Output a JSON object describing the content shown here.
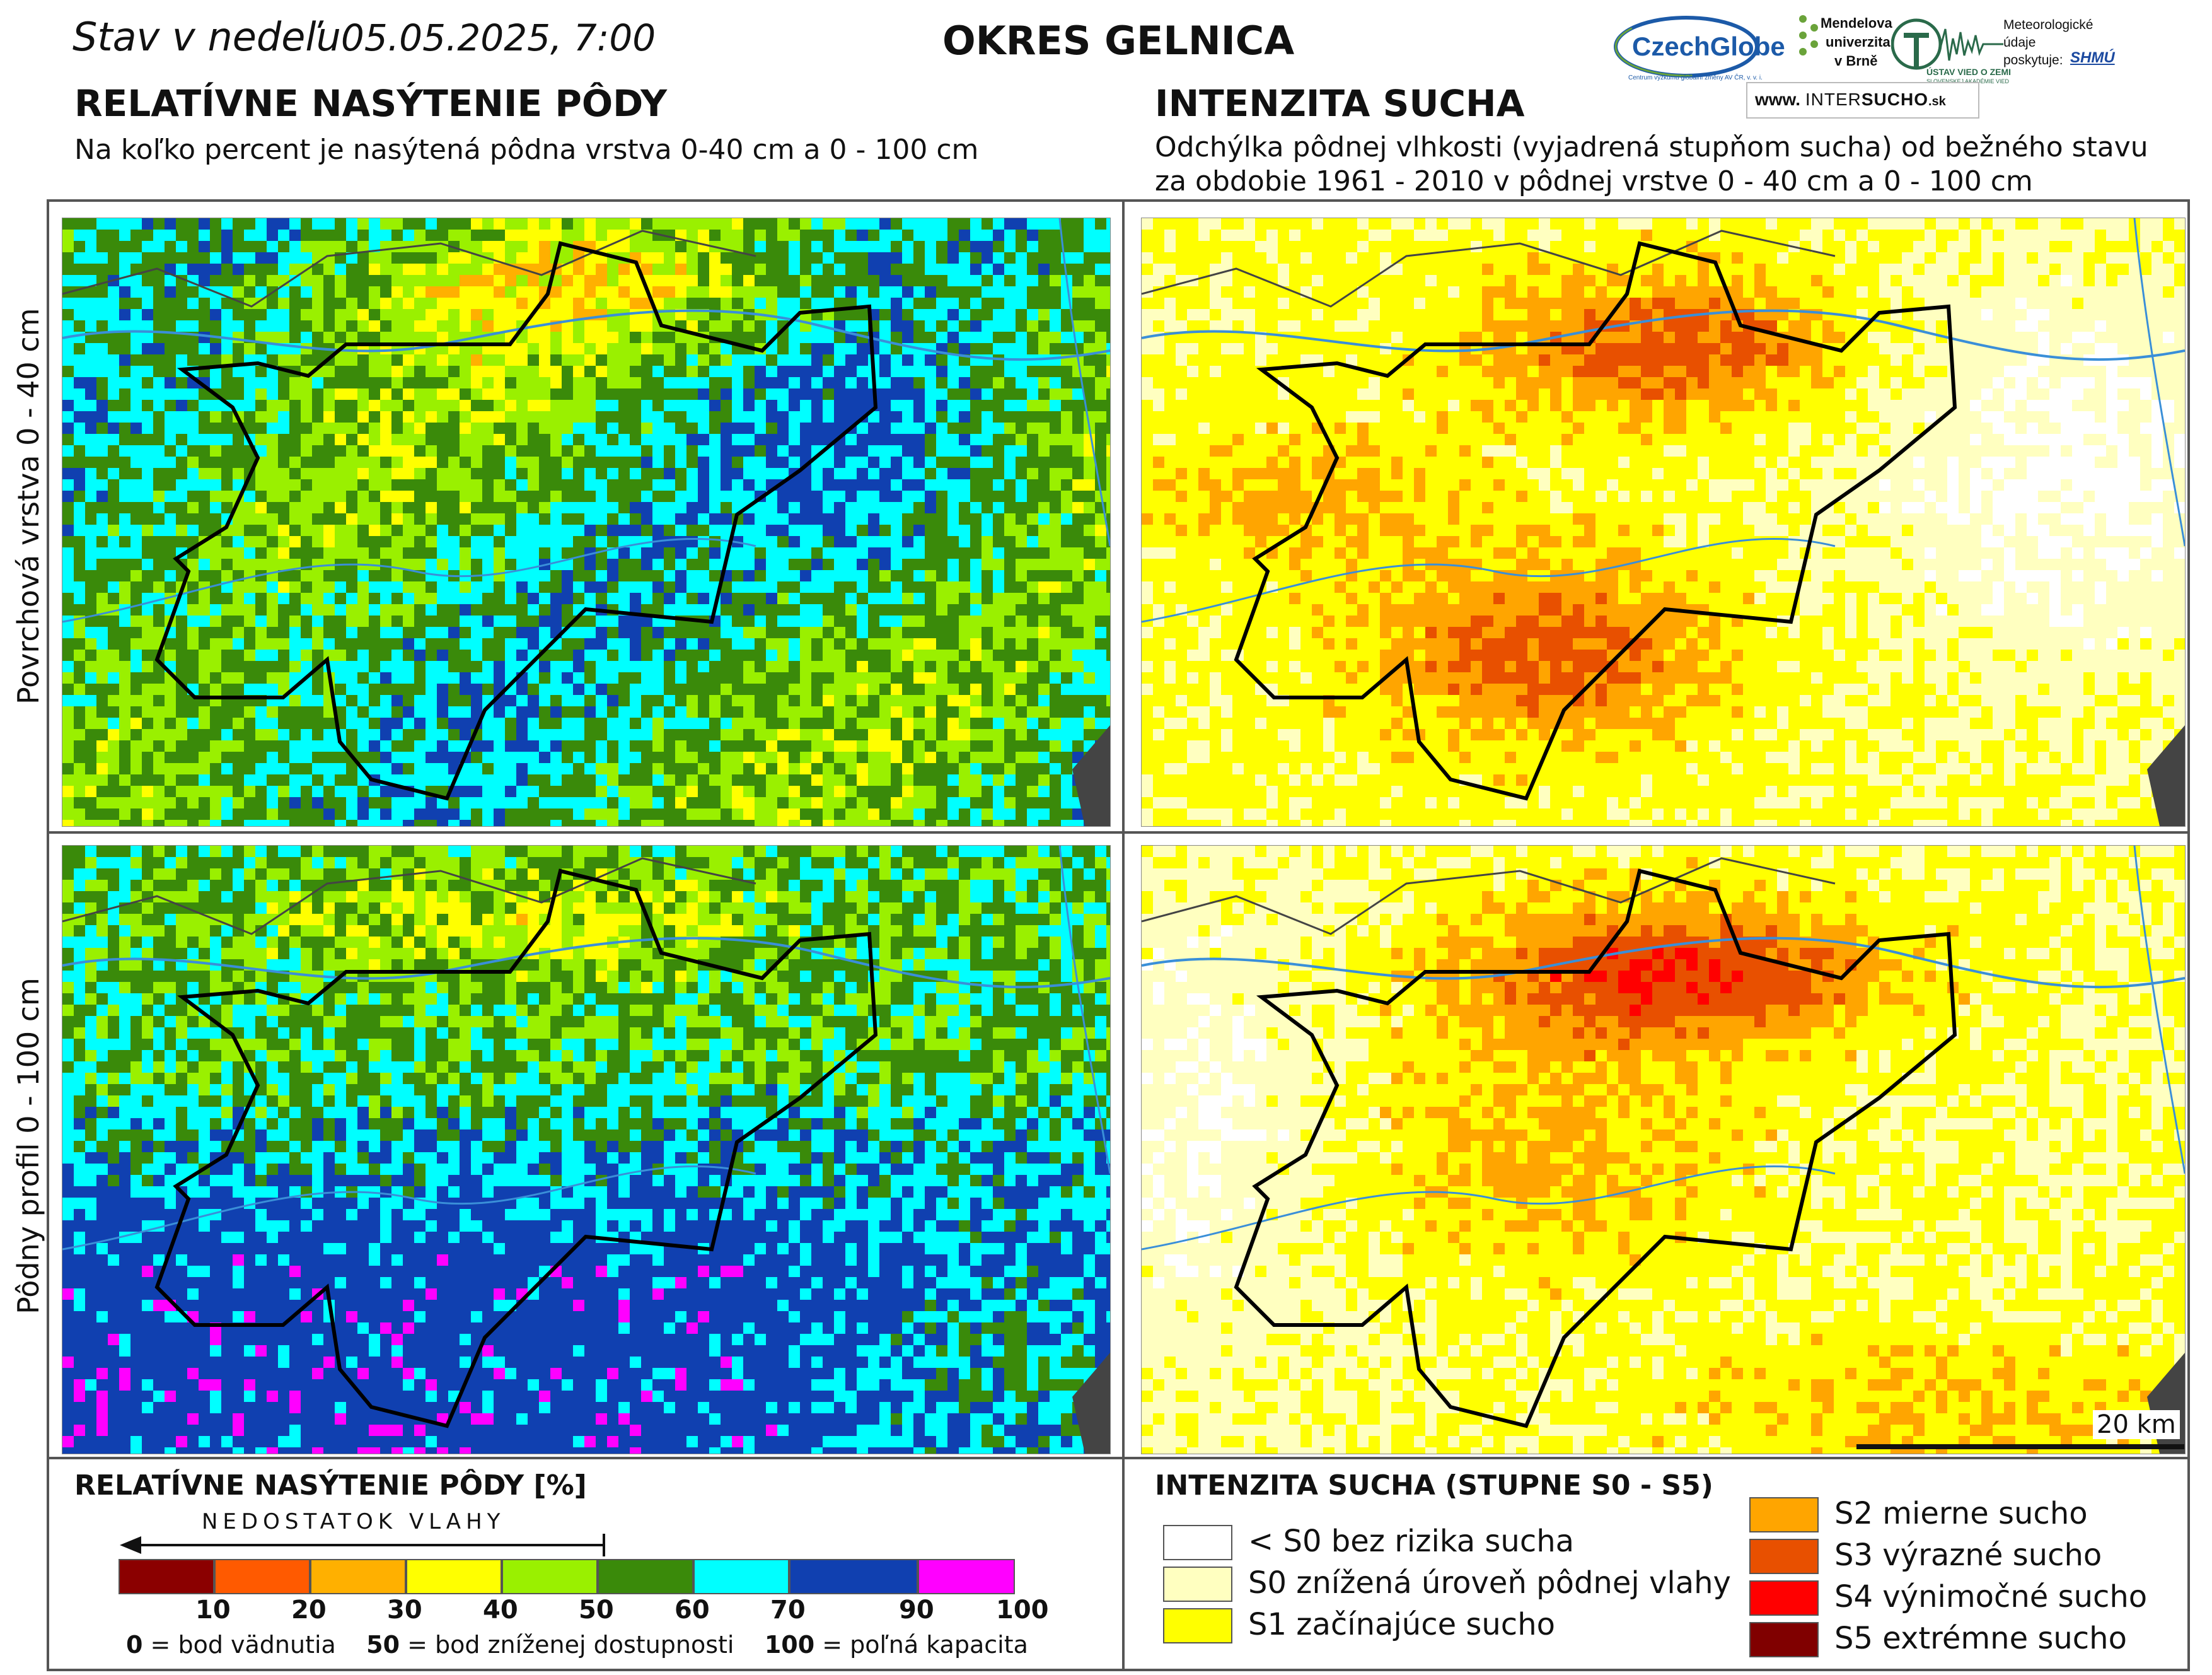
{
  "header": {
    "date_label": "Stav v nedeľu",
    "date_value": "05.05.2025, 7:00",
    "district": "OKRES  GELNICA"
  },
  "logos": {
    "czechglobe": "CzechGlobe",
    "czechglobe_sub": "Centrum výzkumu globální změny AV ČR, v. v. i.",
    "mendel_1": "Mendelova",
    "mendel_2": "univerzita",
    "mendel_3": "v Brně",
    "ustav": "ÚSTAV VIED O ZEMI",
    "ustav_sub": "SLOVENSKEJ AKADÉMIE VIED",
    "meteo_1": "Meteorologické",
    "meteo_2": "údaje",
    "meteo_3": "poskytuje:",
    "shmu": "SHMÚ",
    "intersucho_www": "www.",
    "intersucho_inter": "INTER",
    "intersucho_sucho": "SUCHO",
    "intersucho_sk": ".sk"
  },
  "left_section": {
    "title": "RELATÍVNE NASÝTENIE PÔDY",
    "subtitle": "Na koľko percent je nasýtená pôdna vrstva 0-40 cm a 0 - 100 cm"
  },
  "right_section": {
    "title": "INTENZITA SUCHA",
    "subtitle_1": "Odchýlka pôdnej vlhkosti (vyjadrená stupňom sucha) od bežného stavu",
    "subtitle_2": "za obdobie 1961 - 2010 v pôdnej vrstve 0 - 40 cm a 0 - 100 cm"
  },
  "rows": {
    "top": "Povrchová vrstva 0 - 40 cm",
    "bottom": "Pôdny profil 0 - 100 cm"
  },
  "scale": "20 km",
  "legend_left": {
    "title": "RELATÍVNE NASÝTENIE PÔDY [%]",
    "arrow_label": "NEDOSTATOK VLAHY",
    "colors": [
      "#8b0000",
      "#ff5a00",
      "#ffb000",
      "#ffff00",
      "#9af000",
      "#3a8a0a",
      "#00ffff",
      "#1040b0",
      "#ff00ff"
    ],
    "ticks": [
      "10",
      "20",
      "30",
      "40",
      "50",
      "60",
      "70",
      "90",
      "100"
    ],
    "note_0_bold": "0",
    "note_0": " = bod vädnutia",
    "note_50_bold": "50",
    "note_50": " = bod zníženej dostupnosti",
    "note_100_bold": "100",
    "note_100": " = poľná kapacita"
  },
  "legend_right": {
    "title": "INTENZITA SUCHA (STUPNE S0 - S5)",
    "items": [
      {
        "label": "< S0 bez rizika sucha",
        "color": "#ffffff"
      },
      {
        "label": "S0 znížená úroveň pôdnej vlahy",
        "color": "#ffffc0"
      },
      {
        "label": "S1 začínajúce sucho",
        "color": "#ffff00"
      },
      {
        "label": "S2 mierne sucho",
        "color": "#ffa500"
      },
      {
        "label": "S3 výrazné sucho",
        "color": "#e85000"
      },
      {
        "label": "S4 výnimočné sucho",
        "color": "#ff0000"
      },
      {
        "label": "S5 extrémne sucho",
        "color": "#800000"
      }
    ]
  }
}
